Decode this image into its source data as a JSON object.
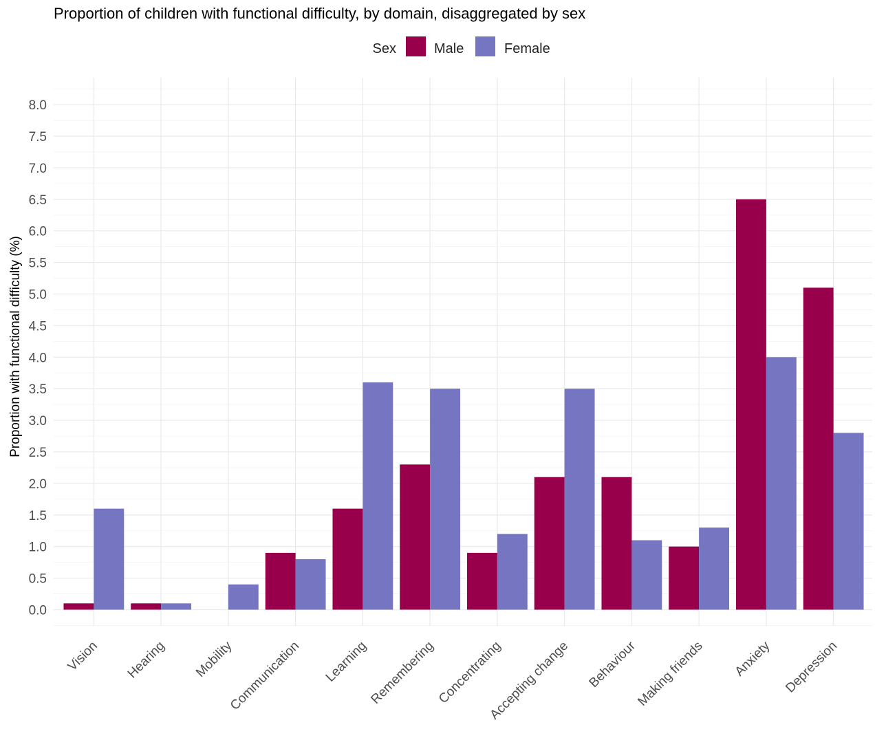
{
  "chart_data": {
    "type": "bar",
    "title": "Proportion of children with functional difficulty, by domain, disaggregated by sex",
    "xlabel": "",
    "ylabel": "Proportion with functional difficulty (%)",
    "ylim": [
      -0.25,
      8.25
    ],
    "yticks": [
      "0.0",
      "0.5",
      "1.0",
      "1.5",
      "2.0",
      "2.5",
      "3.0",
      "3.5",
      "4.0",
      "4.5",
      "5.0",
      "5.5",
      "6.0",
      "6.5",
      "7.0",
      "7.5",
      "8.0"
    ],
    "grid": true,
    "legend": {
      "title": "Sex",
      "position": "top"
    },
    "categories": [
      "Vision",
      "Hearing",
      "Mobility",
      "Communication",
      "Learning",
      "Remembering",
      "Concentrating",
      "Accepting change",
      "Behaviour",
      "Making friends",
      "Anxiety",
      "Depression"
    ],
    "series": [
      {
        "name": "Male",
        "color": "#99004c",
        "values": [
          0.1,
          0.1,
          0.0,
          0.9,
          1.6,
          2.3,
          0.9,
          2.1,
          2.1,
          1.0,
          6.5,
          5.1
        ]
      },
      {
        "name": "Female",
        "color": "#7575c1",
        "values": [
          1.6,
          0.1,
          0.4,
          0.8,
          3.6,
          3.5,
          1.2,
          3.5,
          1.1,
          1.3,
          4.0,
          2.8
        ]
      }
    ]
  }
}
